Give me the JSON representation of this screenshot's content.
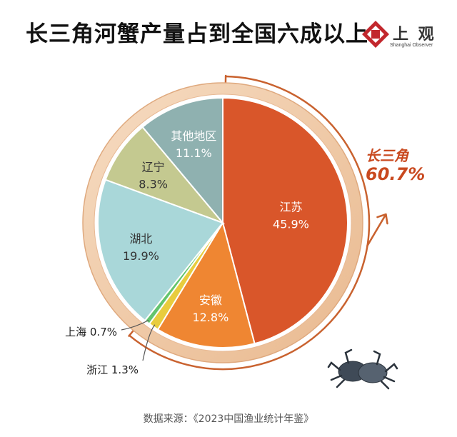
{
  "title": "长三角河蟹产量占到全国六成以上",
  "logo": {
    "name": "上 观",
    "sub": "Shanghai Observer"
  },
  "source": "数据来源：《2023中国渔业统计年鉴》",
  "chart_data": {
    "type": "pie",
    "title": "长三角河蟹产量占到全国六成以上",
    "slices": [
      {
        "name": "江苏",
        "value": 45.9,
        "label": "45.9%",
        "color": "#d9562a",
        "text": "light",
        "position": "inside"
      },
      {
        "name": "安徽",
        "value": 12.8,
        "label": "12.8%",
        "color": "#ef8632",
        "text": "light",
        "position": "inside"
      },
      {
        "name": "浙江",
        "value": 1.3,
        "label": "1.3%",
        "color": "#e8cc3e",
        "text": "dark",
        "position": "outside"
      },
      {
        "name": "上海",
        "value": 0.7,
        "label": "0.7%",
        "color": "#63c46e",
        "text": "dark",
        "position": "outside"
      },
      {
        "name": "湖北",
        "value": 19.9,
        "label": "19.9%",
        "color": "#a9d7d9",
        "text": "dark",
        "position": "inside"
      },
      {
        "name": "辽宁",
        "value": 8.3,
        "label": "8.3%",
        "color": "#c4c990",
        "text": "dark",
        "position": "inside"
      },
      {
        "name": "其他地区",
        "value": 11.1,
        "label": "11.1%",
        "color": "#8fb1b0",
        "text": "light",
        "position": "inside"
      }
    ],
    "group": {
      "name": "长三角",
      "value": "60.7%",
      "color": "#c9491f"
    }
  }
}
